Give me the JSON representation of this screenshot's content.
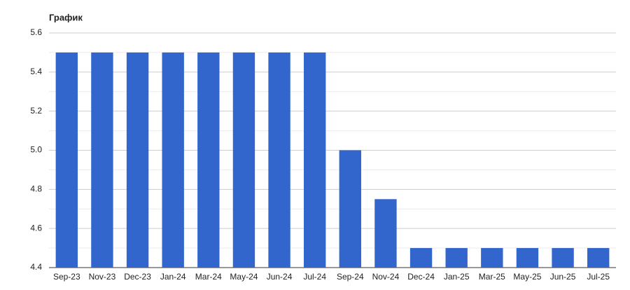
{
  "chart_data": {
    "type": "bar",
    "title": "График",
    "categories": [
      "Sep-23",
      "Nov-23",
      "Dec-23",
      "Jan-24",
      "Mar-24",
      "May-24",
      "Jun-24",
      "Jul-24",
      "Sep-24",
      "Nov-24",
      "Dec-24",
      "Jan-25",
      "Mar-25",
      "May-25",
      "Jun-25",
      "Jul-25"
    ],
    "values": [
      5.5,
      5.5,
      5.5,
      5.5,
      5.5,
      5.5,
      5.5,
      5.5,
      5.0,
      4.75,
      4.5,
      4.5,
      4.5,
      4.5,
      4.5,
      4.5
    ],
    "color": "#3366cc",
    "ylim": [
      4.4,
      5.6
    ],
    "yticks": [
      4.4,
      4.6,
      4.8,
      {
        "value": 5,
        "label": "5.0"
      },
      5.2,
      5.4,
      5.6
    ],
    "minor_yticks": [
      4.5,
      4.7,
      4.9,
      5.1,
      5.3,
      5.5
    ],
    "grid": true
  }
}
